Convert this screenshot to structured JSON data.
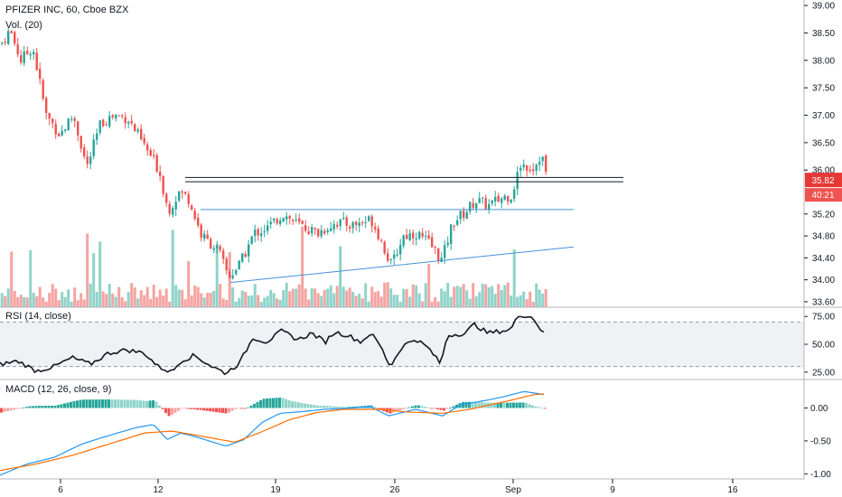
{
  "header": {
    "symbol_line": "PFIZER INC, 60, Cboe BZX",
    "volume_label": "Vol. (20)"
  },
  "rsi_legend": "RSI (14, close)",
  "macd_legend": "MACD (12, 26, close, 9)",
  "price_badge": "35.82",
  "countdown_badge": "40:21",
  "colors": {
    "up": "#26a69a",
    "down": "#ef5350",
    "up_volume": "#8fd3c9",
    "down_volume": "#f5a3a1",
    "badge_price": "#e53935",
    "badge_timer": "#ef5350",
    "trendline": "#4a90d9",
    "resistance": "#131722",
    "macd_line": "#2196f3",
    "signal_line": "#ff6d00"
  },
  "chart_data": [
    {
      "type": "candlestick",
      "panel": "price",
      "y_ticks": [
        "39.00",
        "38.50",
        "38.00",
        "37.50",
        "37.00",
        "36.50",
        "36.00",
        "35.20",
        "34.80",
        "34.40",
        "34.00",
        "33.60"
      ],
      "x_ticks": [
        "6",
        "12",
        "19",
        "26",
        "Sep",
        "9",
        "16"
      ],
      "ylim": [
        33.5,
        39.1
      ],
      "last_price": 35.82,
      "waypoints": [
        [
          0,
          38.3
        ],
        [
          10,
          38.55
        ],
        [
          22,
          38.0
        ],
        [
          35,
          38.25
        ],
        [
          50,
          37.0
        ],
        [
          65,
          36.65
        ],
        [
          80,
          37.0
        ],
        [
          95,
          36.05
        ],
        [
          110,
          36.85
        ],
        [
          125,
          37.0
        ],
        [
          140,
          36.95
        ],
        [
          160,
          36.4
        ],
        [
          175,
          36.0
        ],
        [
          185,
          35.25
        ],
        [
          197,
          35.6
        ],
        [
          207,
          35.5
        ],
        [
          222,
          34.8
        ],
        [
          240,
          34.55
        ],
        [
          252,
          34.05
        ],
        [
          265,
          34.3
        ],
        [
          280,
          34.85
        ],
        [
          295,
          34.95
        ],
        [
          312,
          35.2
        ],
        [
          330,
          35.0
        ],
        [
          350,
          34.85
        ],
        [
          370,
          35.05
        ],
        [
          390,
          35.0
        ],
        [
          410,
          35.1
        ],
        [
          420,
          34.75
        ],
        [
          432,
          34.25
        ],
        [
          445,
          34.8
        ],
        [
          460,
          34.85
        ],
        [
          475,
          34.65
        ],
        [
          488,
          34.35
        ],
        [
          500,
          35.05
        ],
        [
          515,
          35.25
        ],
        [
          525,
          35.45
        ],
        [
          540,
          35.35
        ],
        [
          555,
          35.5
        ],
        [
          565,
          35.55
        ],
        [
          575,
          36.1
        ],
        [
          590,
          36.05
        ],
        [
          598,
          36.3
        ],
        [
          605,
          35.82
        ]
      ],
      "lines": {
        "resistance_upper": 35.85,
        "resistance_lower": 35.82,
        "horizontal_support": 35.28,
        "rising_trendline": [
          [
            255,
            33.95
          ],
          [
            635,
            34.6
          ]
        ]
      }
    },
    {
      "type": "rsi",
      "panel": "RSI (14, close)",
      "y_ticks": [
        "75.00",
        "50.00",
        "25.00"
      ],
      "ylim": [
        20,
        80
      ],
      "band": [
        30,
        70
      ],
      "waypoints": [
        [
          0,
          32
        ],
        [
          20,
          35
        ],
        [
          40,
          26
        ],
        [
          60,
          30
        ],
        [
          80,
          38
        ],
        [
          100,
          32
        ],
        [
          120,
          42
        ],
        [
          140,
          45
        ],
        [
          160,
          42
        ],
        [
          175,
          30
        ],
        [
          190,
          25
        ],
        [
          200,
          35
        ],
        [
          215,
          40
        ],
        [
          235,
          30
        ],
        [
          250,
          24
        ],
        [
          265,
          33
        ],
        [
          280,
          56
        ],
        [
          295,
          52
        ],
        [
          312,
          62
        ],
        [
          330,
          54
        ],
        [
          345,
          60
        ],
        [
          360,
          52
        ],
        [
          370,
          61
        ],
        [
          385,
          58
        ],
        [
          400,
          52
        ],
        [
          410,
          60
        ],
        [
          420,
          50
        ],
        [
          432,
          30
        ],
        [
          445,
          48
        ],
        [
          460,
          55
        ],
        [
          475,
          46
        ],
        [
          488,
          32
        ],
        [
          495,
          58
        ],
        [
          515,
          60
        ],
        [
          525,
          68
        ],
        [
          540,
          60
        ],
        [
          555,
          62
        ],
        [
          565,
          63
        ],
        [
          575,
          77
        ],
        [
          590,
          74
        ],
        [
          598,
          64
        ],
        [
          605,
          56
        ]
      ]
    },
    {
      "type": "macd",
      "panel": "MACD (12, 26, close, 9)",
      "y_ticks": [
        "0.00",
        "-0.50",
        "-1.00"
      ],
      "ylim": [
        -1.05,
        0.35
      ],
      "macd_waypoints": [
        [
          0,
          -1.02
        ],
        [
          30,
          -0.85
        ],
        [
          60,
          -0.75
        ],
        [
          90,
          -0.55
        ],
        [
          120,
          -0.42
        ],
        [
          150,
          -0.3
        ],
        [
          170,
          -0.25
        ],
        [
          185,
          -0.48
        ],
        [
          200,
          -0.38
        ],
        [
          220,
          -0.45
        ],
        [
          250,
          -0.58
        ],
        [
          270,
          -0.48
        ],
        [
          290,
          -0.22
        ],
        [
          310,
          -0.08
        ],
        [
          330,
          -0.06
        ],
        [
          360,
          -0.02
        ],
        [
          390,
          0.0
        ],
        [
          410,
          0.02
        ],
        [
          430,
          -0.12
        ],
        [
          460,
          -0.02
        ],
        [
          490,
          -0.12
        ],
        [
          510,
          0.05
        ],
        [
          540,
          0.12
        ],
        [
          560,
          0.18
        ],
        [
          580,
          0.25
        ],
        [
          605,
          0.2
        ]
      ],
      "signal_waypoints": [
        [
          0,
          -0.95
        ],
        [
          40,
          -0.85
        ],
        [
          80,
          -0.72
        ],
        [
          120,
          -0.55
        ],
        [
          160,
          -0.38
        ],
        [
          190,
          -0.35
        ],
        [
          220,
          -0.42
        ],
        [
          260,
          -0.52
        ],
        [
          290,
          -0.36
        ],
        [
          320,
          -0.18
        ],
        [
          350,
          -0.07
        ],
        [
          380,
          -0.02
        ],
        [
          420,
          -0.02
        ],
        [
          450,
          -0.06
        ],
        [
          490,
          -0.08
        ],
        [
          520,
          -0.02
        ],
        [
          560,
          0.1
        ],
        [
          590,
          0.2
        ],
        [
          605,
          0.22
        ]
      ]
    }
  ]
}
